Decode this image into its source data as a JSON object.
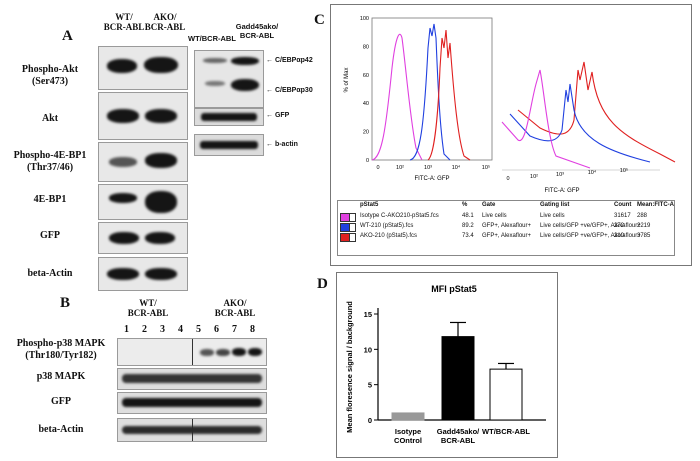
{
  "panels": {
    "a": "A",
    "b": "B",
    "c": "C",
    "d": "D"
  },
  "panelA": {
    "col_headers": [
      "WT/\nBCR-ABL",
      "AKO/\nBCR-ABL"
    ],
    "rows": [
      "Phospho-Akt\n(Ser473)",
      "Akt",
      "Phospho-4E-BP1\n(Thr37/46)",
      "4E-BP1",
      "GFP",
      "beta-Actin"
    ],
    "right_headers": [
      "WT/BCR-ABL",
      "Gadd45ako/\nBCR-ABL"
    ],
    "right_labels": [
      "C/EBPαp42",
      "C/EBPαp30",
      "GFP",
      "b-actin"
    ]
  },
  "panelB": {
    "group_headers": [
      "WT/\nBCR-ABL",
      "AKO/\nBCR-ABL"
    ],
    "lanes": [
      "1",
      "2",
      "3",
      "4",
      "5",
      "6",
      "7",
      "8"
    ],
    "rows": [
      "Phospho-p38 MAPK\n(Thr180/Tyr182)",
      "p38 MAPK",
      "GFP",
      "beta-Actin"
    ]
  },
  "panelC": {
    "ylabel": "% of Max",
    "xlabel": "FITC-A: GFP",
    "xlabel2": "FITC-A: GFP",
    "y_ticks": [
      "0",
      "20",
      "40",
      "60",
      "80",
      "100"
    ],
    "x_ticks": [
      "0",
      "10²",
      "10³",
      "10⁴",
      "10⁵"
    ],
    "x_ticks2": [
      "0",
      "10²",
      "10³",
      "10⁴",
      "10⁵"
    ],
    "table_headers": [
      "pStat5",
      "%",
      "Gate",
      "Gating list",
      "Count",
      "Mean:FITC-A"
    ],
    "table_rows": [
      {
        "name": "Isotype C-AKO210-pStat5.fcs",
        "pct": "48.1",
        "gate": "Live cells",
        "gating": "Live cells",
        "count": "31617",
        "mean": "288",
        "color": "#e040e0"
      },
      {
        "name": "WT-210 (pStat5).fcs",
        "pct": "89.2",
        "gate": "GFP+, Alexaflour+",
        "gating": "Live cells/GFP +ve/GFP+, Alexaflour+",
        "count": "272",
        "mean": "2219",
        "color": "#2040e0"
      },
      {
        "name": "AKO-210 (pStat5).fcs",
        "pct": "73.4",
        "gate": "GFP+, Alexaflour+",
        "gating": "Live cells/GFP +ve/GFP+, Alexaflour+",
        "count": "210",
        "mean": "3785",
        "color": "#e02020"
      }
    ]
  },
  "chart_data": {
    "type": "bar",
    "title": "MFI pStat5",
    "ylabel": "Mean floresence signal / background",
    "categories": [
      "Isotype\nCOntrol",
      "Gadd45ako/\nBCR-ABL",
      "WT/BCR-ABL"
    ],
    "values": [
      1.0,
      11.8,
      7.2
    ],
    "errors": [
      0,
      2.0,
      0.8
    ],
    "colors": [
      "#999999",
      "#000000",
      "#ffffff"
    ],
    "ylim": [
      0,
      15
    ],
    "yticks": [
      "0",
      "5",
      "10",
      "15"
    ]
  }
}
